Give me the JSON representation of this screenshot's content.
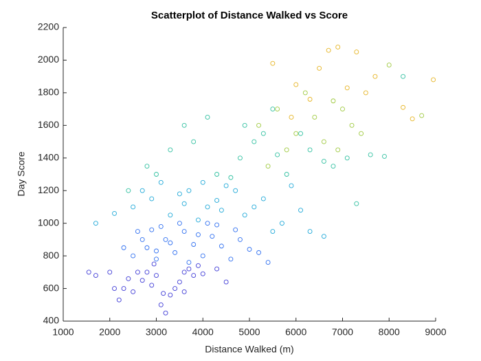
{
  "chart_data": {
    "type": "scatter",
    "title": "Scatterplot of Distance Walked vs Score",
    "x_label": "Distance Walked (m)",
    "y_label": "Day Score",
    "xlim": [
      1000,
      9000
    ],
    "xticks": [
      1000,
      2000,
      3000,
      4000,
      5000,
      6000,
      7000,
      8000,
      9000
    ],
    "ylim": [
      400,
      2200
    ],
    "yticks": [
      400,
      600,
      800,
      1000,
      1200,
      1400,
      1600,
      1800,
      2000,
      2200
    ],
    "grid": false,
    "series": [
      {
        "color": "#3e3ad6",
        "x": [
          3200,
          3100,
          2200,
          2300,
          2500,
          2700,
          2900,
          3000,
          3300,
          3500,
          3600,
          2800,
          2400,
          3700,
          4000,
          3400,
          2600,
          3800,
          4300,
          3900,
          2100,
          2000,
          3150,
          3600,
          4500,
          1550,
          1700,
          2950
        ],
        "values": [
          450,
          500,
          530,
          600,
          580,
          650,
          620,
          680,
          560,
          640,
          700,
          700,
          660,
          720,
          690,
          600,
          700,
          680,
          720,
          740,
          600,
          700,
          570,
          580,
          640,
          700,
          680,
          750
        ]
      },
      {
        "color": "#2f6ff0",
        "x": [
          2500,
          2800,
          3000,
          3200,
          3400,
          3600,
          3800,
          4000,
          4200,
          4400,
          4600,
          4800,
          5000,
          3100,
          3500,
          3900,
          4300,
          2700,
          2900,
          3300,
          3700,
          4100,
          5200,
          5400,
          2300,
          2600,
          4700,
          3000
        ],
        "values": [
          800,
          850,
          780,
          900,
          820,
          950,
          870,
          800,
          920,
          860,
          780,
          900,
          840,
          980,
          1000,
          930,
          990,
          900,
          960,
          880,
          760,
          1000,
          820,
          760,
          850,
          950,
          960,
          830
        ]
      },
      {
        "color": "#1ea8d8",
        "x": [
          1700,
          2100,
          2500,
          2900,
          3300,
          3700,
          4100,
          4500,
          4900,
          5300,
          5700,
          6100,
          3100,
          3500,
          3900,
          4300,
          4700,
          5100,
          5500,
          2700,
          6300,
          6600,
          4000,
          4400,
          3600,
          5900
        ],
        "values": [
          1000,
          1060,
          1100,
          1150,
          1050,
          1200,
          1100,
          1230,
          1050,
          1150,
          1000,
          1080,
          1250,
          1180,
          1020,
          1140,
          1200,
          1100,
          950,
          1200,
          950,
          920,
          1250,
          1080,
          1120,
          1230
        ]
      },
      {
        "color": "#30c0a0",
        "x": [
          2800,
          3300,
          3800,
          4300,
          4800,
          5300,
          5800,
          6300,
          6800,
          3600,
          4100,
          4600,
          5100,
          5600,
          6100,
          6600,
          7100,
          7600,
          3000,
          4900,
          5500,
          7300,
          7900,
          8300,
          2400
        ],
        "values": [
          1350,
          1450,
          1500,
          1300,
          1400,
          1550,
          1300,
          1450,
          1350,
          1600,
          1650,
          1280,
          1500,
          1420,
          1550,
          1380,
          1400,
          1420,
          1300,
          1600,
          1700,
          1120,
          1410,
          1900,
          1200
        ]
      },
      {
        "color": "#9ec93e",
        "x": [
          5200,
          5600,
          6000,
          6400,
          6800,
          7200,
          5800,
          6200,
          6600,
          7000,
          7400,
          5400,
          8700,
          8000,
          6900
        ],
        "values": [
          1600,
          1700,
          1550,
          1650,
          1750,
          1600,
          1450,
          1800,
          1500,
          1700,
          1550,
          1350,
          1660,
          1970,
          1450
        ]
      },
      {
        "color": "#e6b422",
        "x": [
          5500,
          6000,
          6500,
          6900,
          7300,
          7700,
          8300,
          8950,
          6300,
          7100,
          5900,
          8500,
          7500,
          6700
        ],
        "values": [
          1980,
          1850,
          1950,
          2080,
          2050,
          1900,
          1710,
          1880,
          1760,
          1830,
          1650,
          1640,
          1800,
          2060
        ]
      }
    ]
  }
}
